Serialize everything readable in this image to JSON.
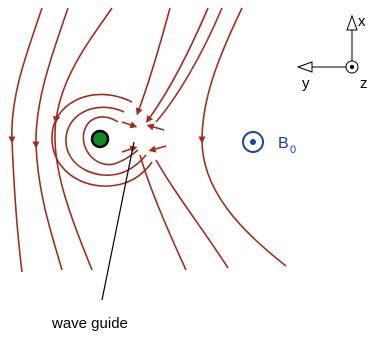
{
  "figure": {
    "wave_guide_label": "wave guide",
    "field_label": "B",
    "field_subscript": "0",
    "axes": {
      "x": "x",
      "y": "y",
      "z": "z"
    }
  },
  "colors": {
    "field_line": "#a52a1c",
    "field_vector": "#1a3fb0",
    "waveguide_core": "#0e8a1e",
    "text": "#000000"
  }
}
